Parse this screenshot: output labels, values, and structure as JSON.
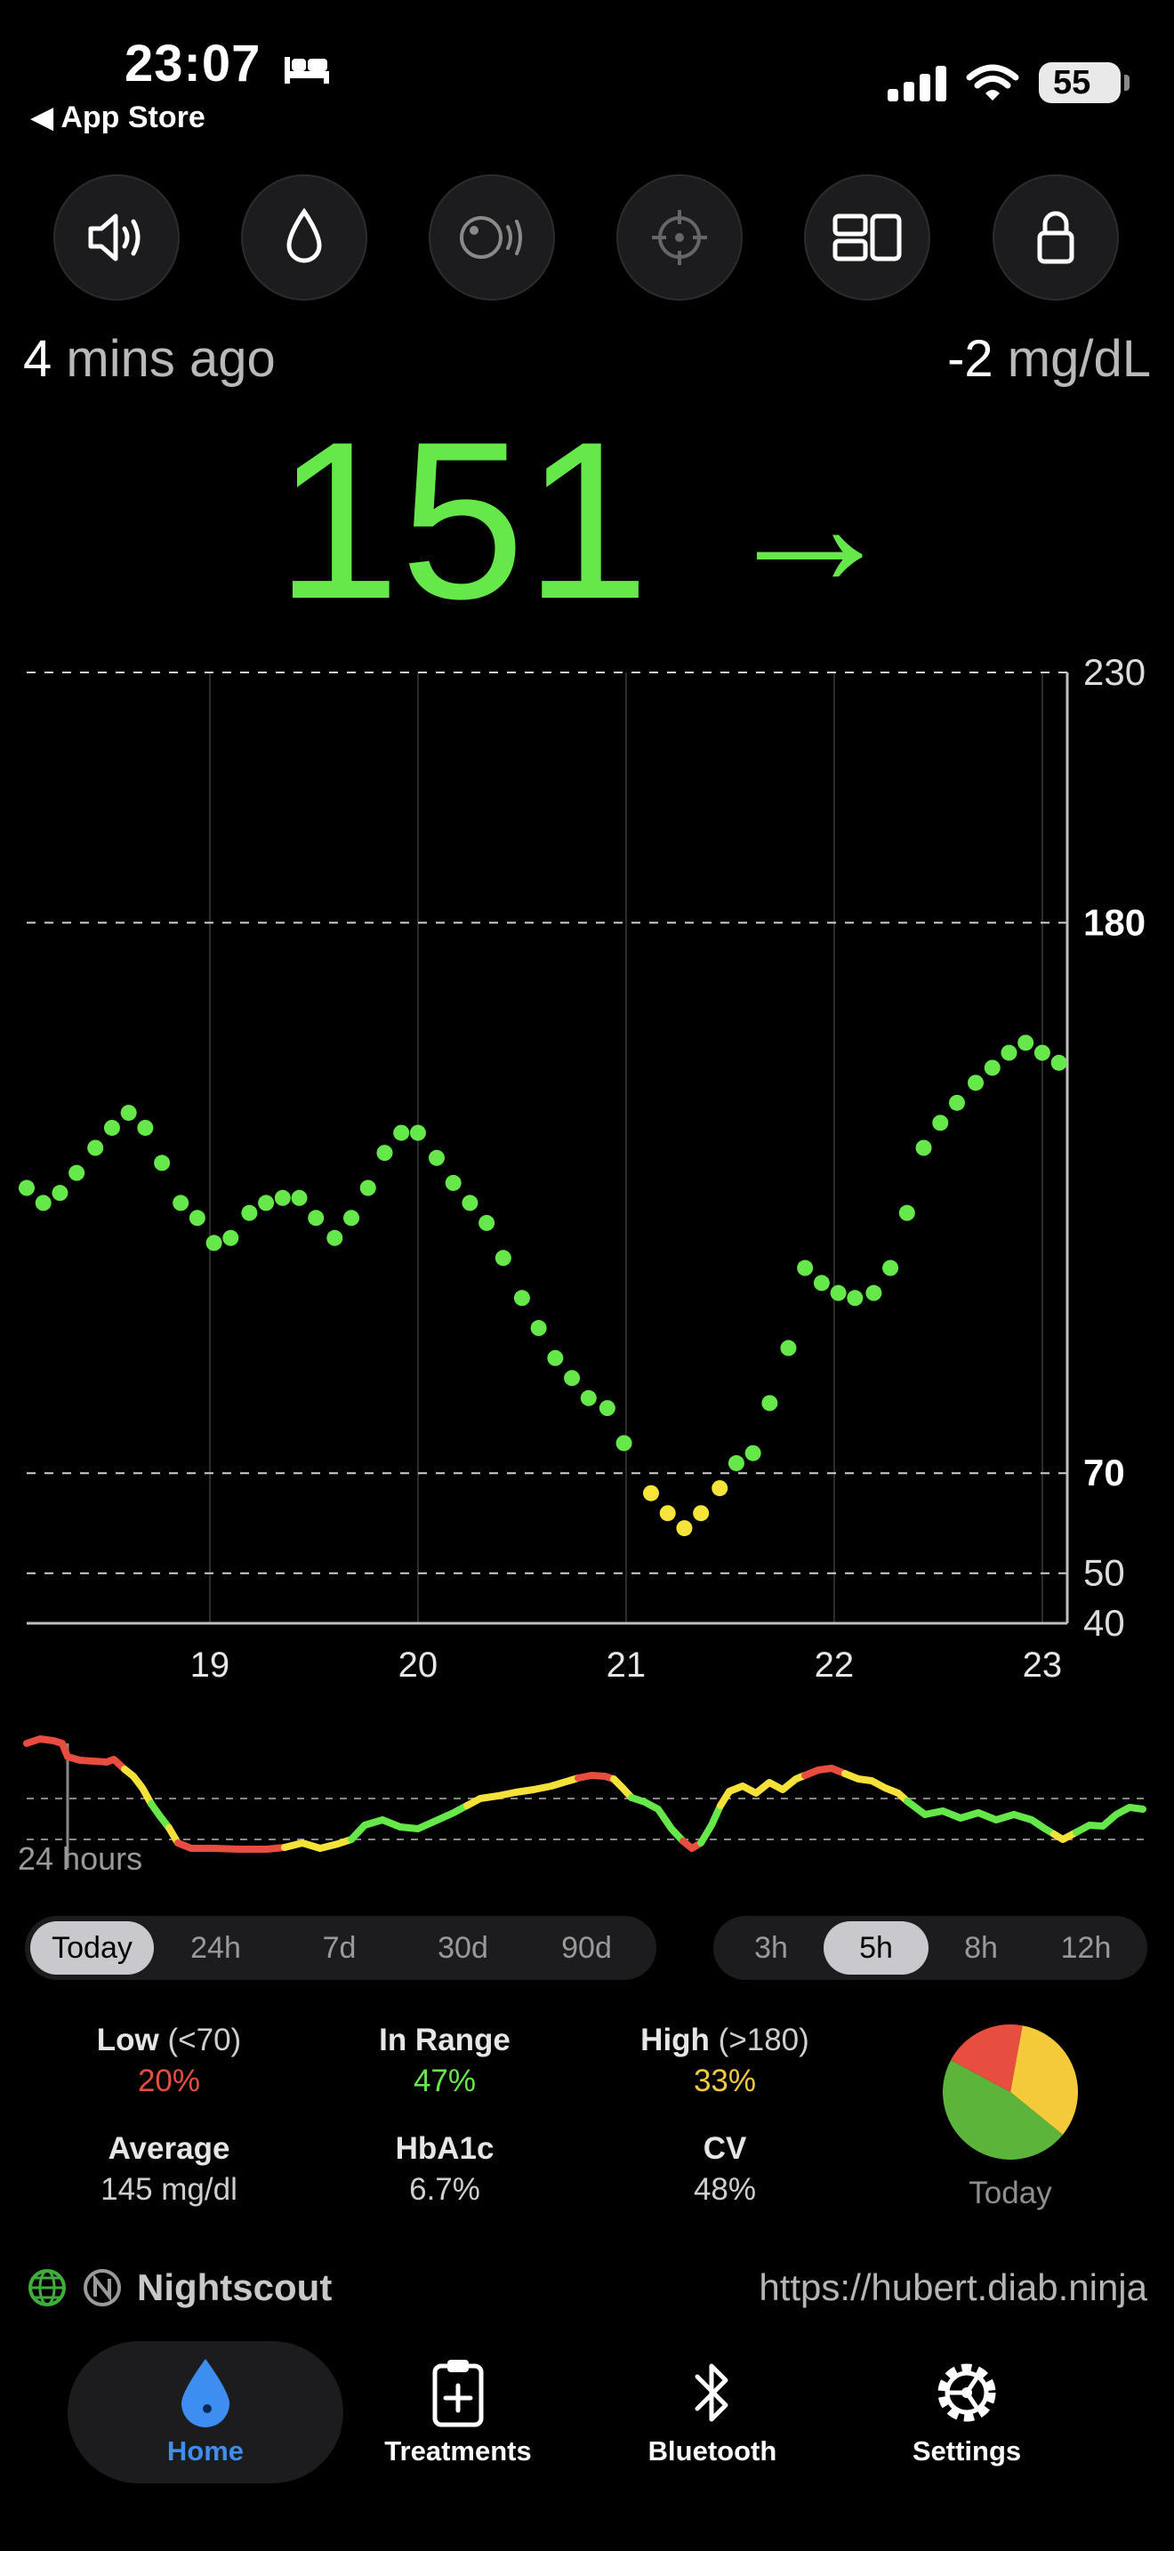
{
  "status_bar": {
    "time": "23:07",
    "back_label": "◀ App Store",
    "battery": "55"
  },
  "toolbar": {
    "buttons": [
      {
        "name": "speaker-icon"
      },
      {
        "name": "drop-icon"
      },
      {
        "name": "snooze-icon"
      },
      {
        "name": "crosshair-icon"
      },
      {
        "name": "layout-icon"
      },
      {
        "name": "lock-icon"
      }
    ]
  },
  "reading": {
    "ago_num": "4",
    "ago_unit": " mins ago",
    "delta_num": "-2",
    "delta_unit": " mg/dL",
    "value": "151",
    "trend": "→",
    "color": "#66e84a"
  },
  "chart_data": {
    "type": "scatter",
    "x_ticks": [
      "19",
      "20",
      "21",
      "22",
      "23"
    ],
    "y_ticks": [
      "230",
      "180",
      "70",
      "50",
      "40"
    ],
    "ylim": [
      40,
      230
    ],
    "xlim": [
      18.12,
      23.12
    ],
    "thresholds": {
      "low": 70,
      "high": 180
    },
    "colors": {
      "in_range": "#66e84a",
      "low": "#f7e43a"
    },
    "points": [
      [
        18.12,
        127
      ],
      [
        18.2,
        124
      ],
      [
        18.28,
        126
      ],
      [
        18.36,
        130
      ],
      [
        18.45,
        135
      ],
      [
        18.53,
        139
      ],
      [
        18.61,
        142
      ],
      [
        18.69,
        139
      ],
      [
        18.77,
        132
      ],
      [
        18.86,
        124
      ],
      [
        18.94,
        121
      ],
      [
        19.02,
        116
      ],
      [
        19.1,
        117
      ],
      [
        19.19,
        122
      ],
      [
        19.27,
        124
      ],
      [
        19.35,
        125
      ],
      [
        19.43,
        125
      ],
      [
        19.51,
        121
      ],
      [
        19.6,
        117
      ],
      [
        19.68,
        121
      ],
      [
        19.76,
        127
      ],
      [
        19.84,
        134
      ],
      [
        19.92,
        138
      ],
      [
        20.0,
        138
      ],
      [
        20.09,
        133
      ],
      [
        20.17,
        128
      ],
      [
        20.25,
        124
      ],
      [
        20.33,
        120
      ],
      [
        20.41,
        113
      ],
      [
        20.5,
        105
      ],
      [
        20.58,
        99
      ],
      [
        20.66,
        93
      ],
      [
        20.74,
        89
      ],
      [
        20.82,
        85
      ],
      [
        20.91,
        83
      ],
      [
        20.99,
        76
      ],
      [
        21.12,
        66
      ],
      [
        21.2,
        62
      ],
      [
        21.28,
        59
      ],
      [
        21.36,
        62
      ],
      [
        21.45,
        67
      ],
      [
        21.53,
        72
      ],
      [
        21.61,
        74
      ],
      [
        21.69,
        84
      ],
      [
        21.78,
        95
      ],
      [
        21.86,
        111
      ],
      [
        21.94,
        108
      ],
      [
        22.02,
        106
      ],
      [
        22.1,
        105
      ],
      [
        22.19,
        106
      ],
      [
        22.27,
        111
      ],
      [
        22.35,
        122
      ],
      [
        22.43,
        135
      ],
      [
        22.51,
        140
      ],
      [
        22.59,
        144
      ],
      [
        22.68,
        148
      ],
      [
        22.76,
        151
      ],
      [
        22.84,
        154
      ],
      [
        22.92,
        156
      ],
      [
        23.0,
        154
      ],
      [
        23.08,
        152
      ]
    ]
  },
  "overview": {
    "label": "24 hours"
  },
  "range_left": {
    "items": [
      "Today",
      "24h",
      "7d",
      "30d",
      "90d"
    ],
    "selected": 0
  },
  "range_right": {
    "items": [
      "3h",
      "5h",
      "8h",
      "12h"
    ],
    "selected": 1
  },
  "stats": {
    "low_label": "Low",
    "low_range": " (<70)",
    "low_value": "20%",
    "low_fraction": 0.2,
    "low_color": "#e84e3f",
    "in_range_label": "In Range",
    "in_range_value": "47%",
    "in_range_fraction": 0.47,
    "in_range_color": "#5db43a",
    "high_label": "High",
    "high_range": " (>180)",
    "high_value": "33%",
    "high_fraction": 0.33,
    "high_color": "#f4c93a",
    "average_label": "Average",
    "average_value": "145 mg/dl",
    "hba1c_label": "HbA1c",
    "hba1c_value": "6.7%",
    "cv_label": "CV",
    "cv_value": "48%",
    "pie_caption": "Today"
  },
  "nightscout": {
    "title": "Nightscout",
    "url": "https://hubert.diab.ninja"
  },
  "tabs": [
    {
      "label": "Home",
      "icon": "drop-icon",
      "selected": true
    },
    {
      "label": "Treatments",
      "icon": "clipboard-plus-icon",
      "selected": false
    },
    {
      "label": "Bluetooth",
      "icon": "bluetooth-icon",
      "selected": false
    },
    {
      "label": "Settings",
      "icon": "gear-icon",
      "selected": false
    }
  ]
}
